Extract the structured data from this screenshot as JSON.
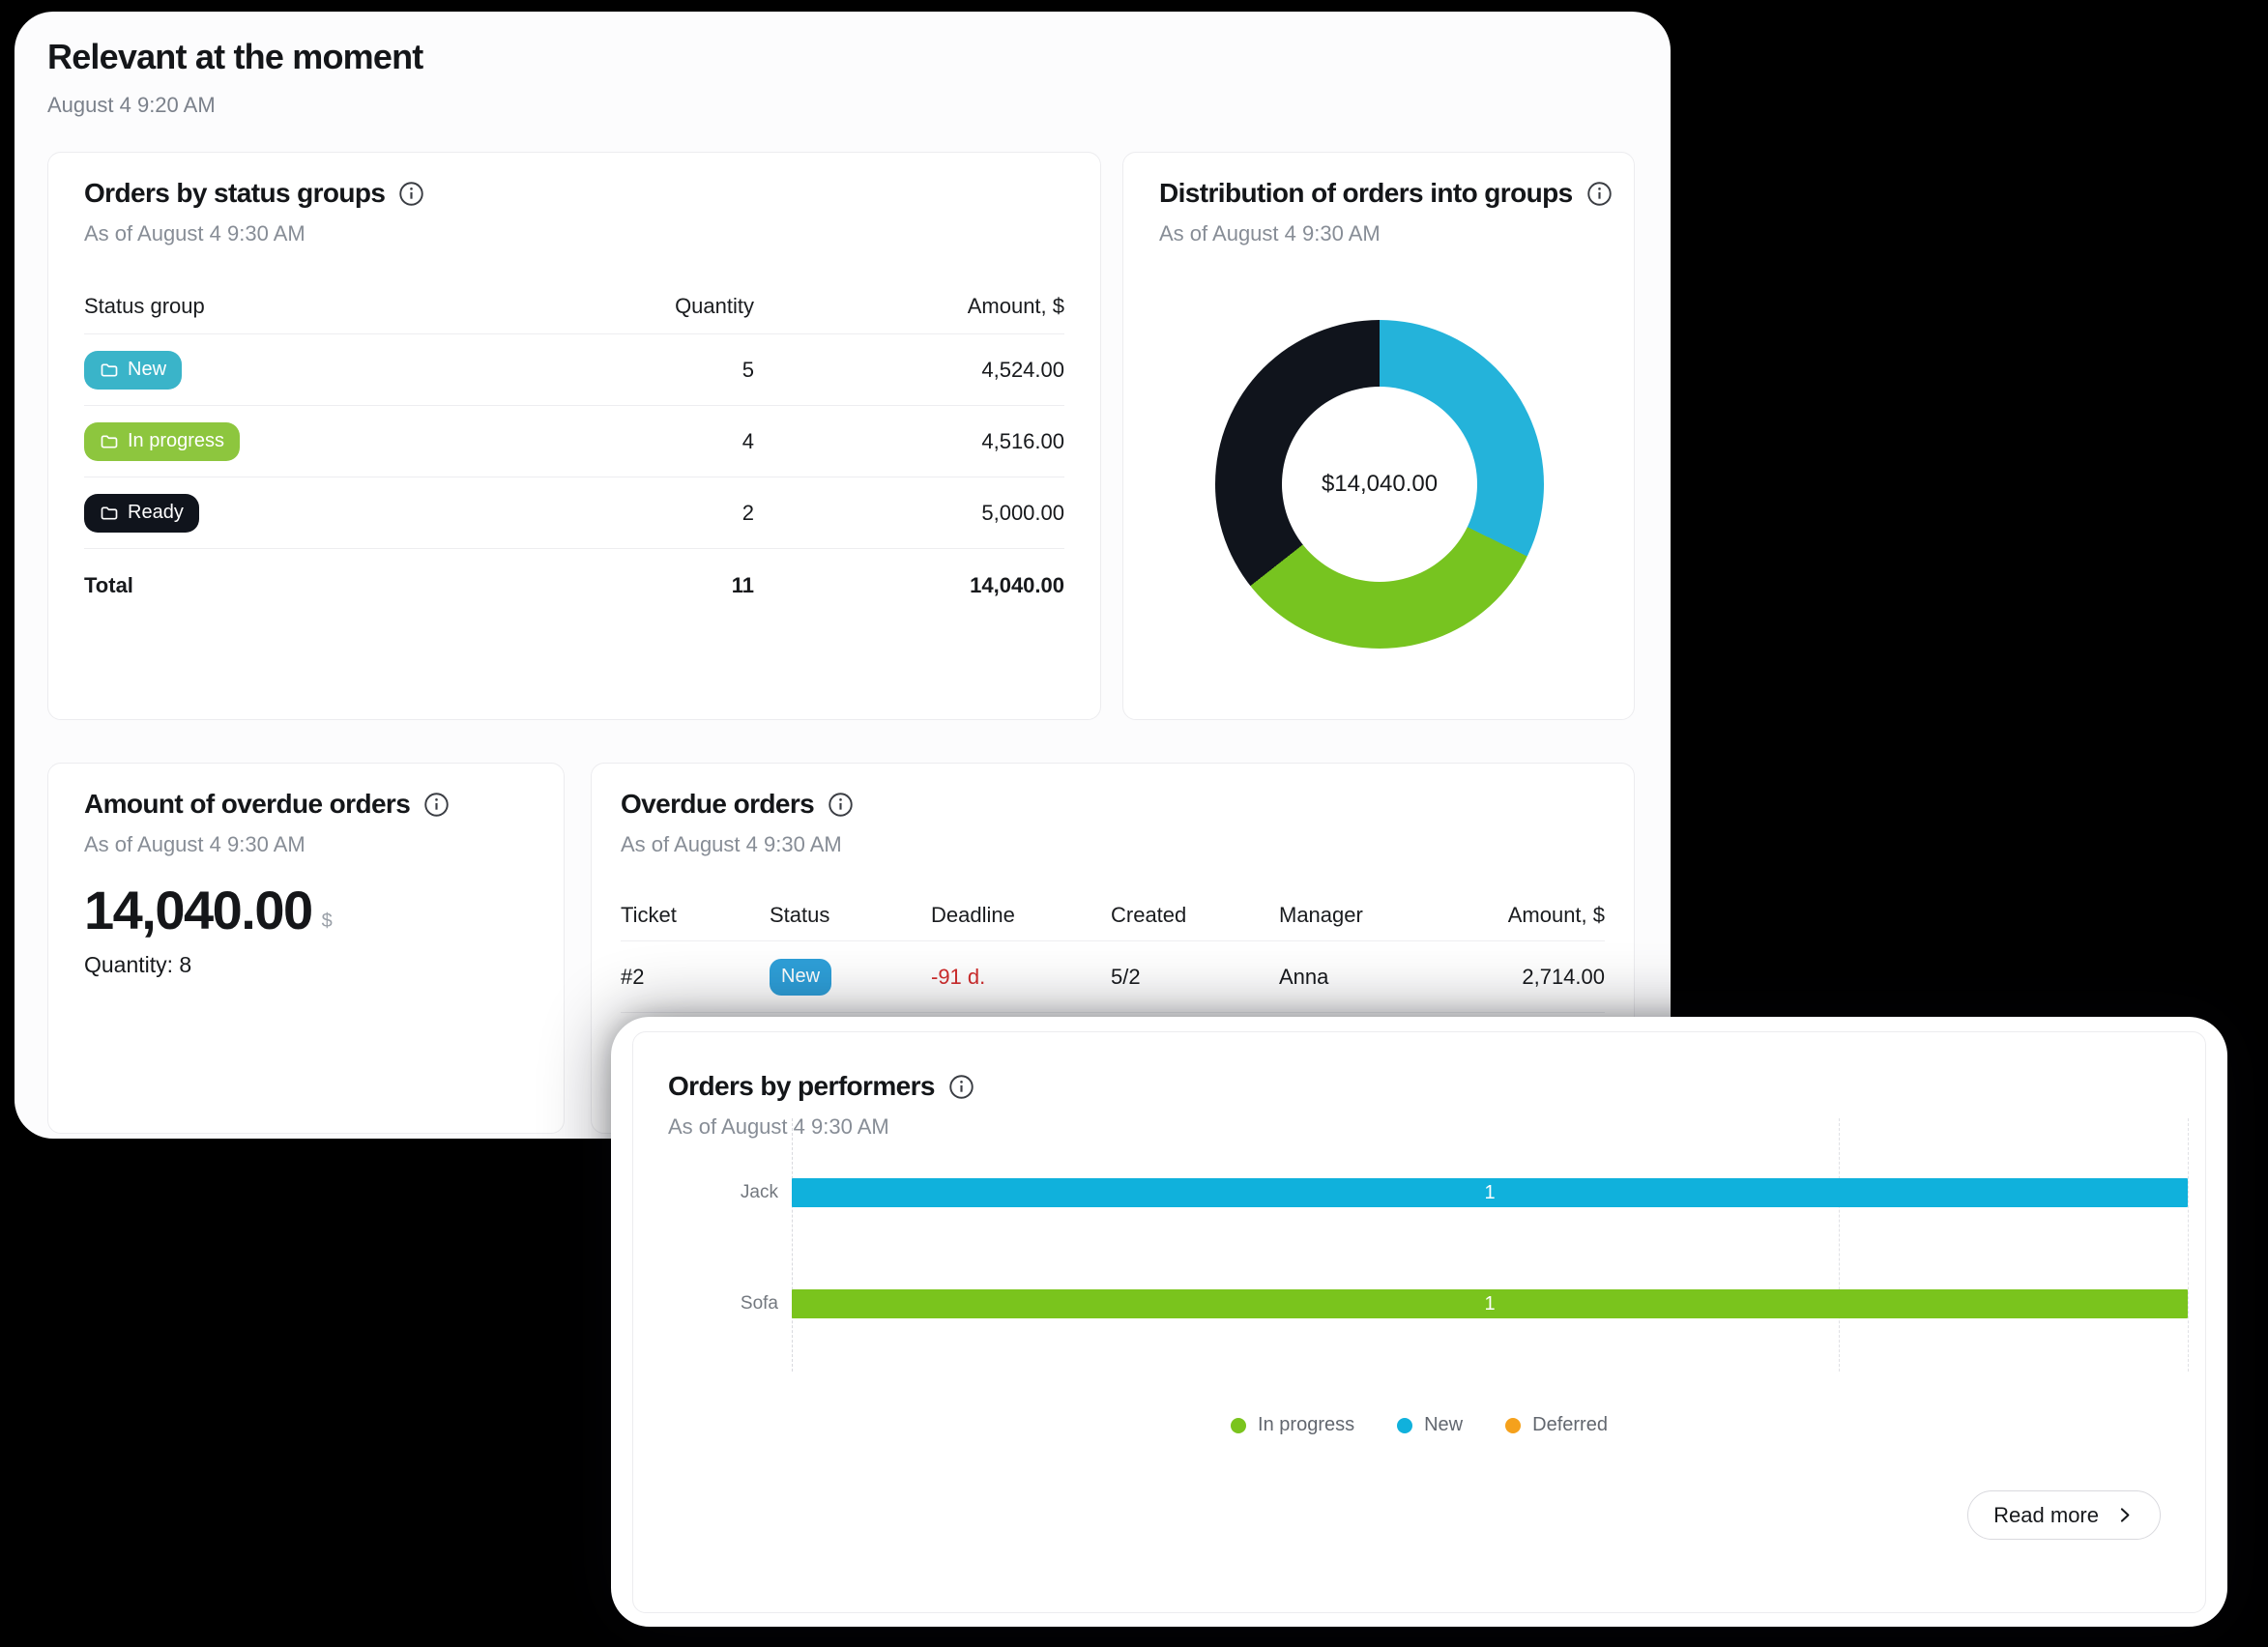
{
  "page": {
    "title": "Relevant at the moment",
    "timestamp": "August 4 9:20 AM"
  },
  "icons": {
    "info": "ⓘ",
    "folder": "🗀",
    "chevron_right": "›",
    "legend_dot": "●"
  },
  "colors": {
    "new_group_badge": "#3ab4c9",
    "in_progress_badge": "#8dc63e",
    "ready_badge": "#10141c",
    "new_status_badge": "#2e9fd8",
    "overdue_red": "#d02c2c",
    "chart_new_blue": "#10b1dc",
    "chart_in_progress_green": "#7ac41d",
    "chart_deferred_orange": "#f5a11c"
  },
  "status_groups_card": {
    "title": "Orders by status groups",
    "as_of": "As of August 4 9:30 AM",
    "columns": {
      "group": "Status group",
      "quantity": "Quantity",
      "amount": "Amount, $"
    },
    "rows": [
      {
        "label": "New",
        "badge_color": "#3ab4c9",
        "quantity": "5",
        "amount": "4,524.00"
      },
      {
        "label": "In progress",
        "badge_color": "#8dc63e",
        "quantity": "4",
        "amount": "4,516.00"
      },
      {
        "label": "Ready",
        "badge_color": "#10141c",
        "quantity": "2",
        "amount": "5,000.00"
      }
    ],
    "total": {
      "label": "Total",
      "quantity": "11",
      "amount": "14,040.00"
    }
  },
  "distribution_card": {
    "title": "Distribution of orders into groups",
    "as_of": "As of August 4 9:30 AM",
    "center_label": "$14,040.00"
  },
  "overdue_amount_card": {
    "title": "Amount of overdue orders",
    "as_of": "As of August 4 9:30 AM",
    "value": "14,040.00",
    "currency": "$",
    "quantity": "Quantity: 8"
  },
  "overdue_orders_card": {
    "title": "Overdue orders",
    "as_of": "As of August 4 9:30 AM",
    "columns": {
      "ticket": "Ticket",
      "status": "Status",
      "deadline": "Deadline",
      "created": "Created",
      "manager": "Manager",
      "amount": "Amount, $"
    },
    "rows": [
      {
        "ticket": "#2",
        "status": "New",
        "status_color": "#2e9fd8",
        "deadline": "-91 d.",
        "deadline_color": "#d02c2c",
        "created": "5/2",
        "manager": "Anna",
        "amount": "2,714.00"
      }
    ]
  },
  "performers_card": {
    "title": "Orders by performers",
    "as_of": "As of August 4 9:30 AM",
    "read_more": "Read more",
    "legend": [
      {
        "label": "In progress",
        "color": "#7ac41d"
      },
      {
        "label": "New",
        "color": "#10b1dc"
      },
      {
        "label": "Deferred",
        "color": "#f5a11c"
      }
    ]
  },
  "chart_data": [
    {
      "type": "pie",
      "subtype": "donut",
      "title": "Distribution of orders into groups",
      "labels": [
        "New",
        "In progress",
        "Ready"
      ],
      "values": [
        4524,
        4516,
        5000
      ],
      "colors": [
        "#24b3da",
        "#77c420",
        "#10141c"
      ],
      "total": 14040,
      "center_label": "$14,040.00",
      "legend_position": "none"
    },
    {
      "type": "bar",
      "orientation": "horizontal",
      "title": "Orders by performers",
      "categories": [
        "Jack",
        "Sofa"
      ],
      "rows": [
        {
          "category": "Jack",
          "series": "New",
          "value": 1,
          "label": "1",
          "color": "#10b1dc"
        },
        {
          "category": "Sofa",
          "series": "In progress",
          "value": 1,
          "label": "1",
          "color": "#7ac41d"
        }
      ],
      "xlim": [
        0,
        1
      ],
      "gridlines_x": [
        0,
        0.75,
        1
      ],
      "grid": "dashed-vertical",
      "legend": [
        "In progress",
        "New",
        "Deferred"
      ],
      "legend_position": "bottom"
    }
  ]
}
